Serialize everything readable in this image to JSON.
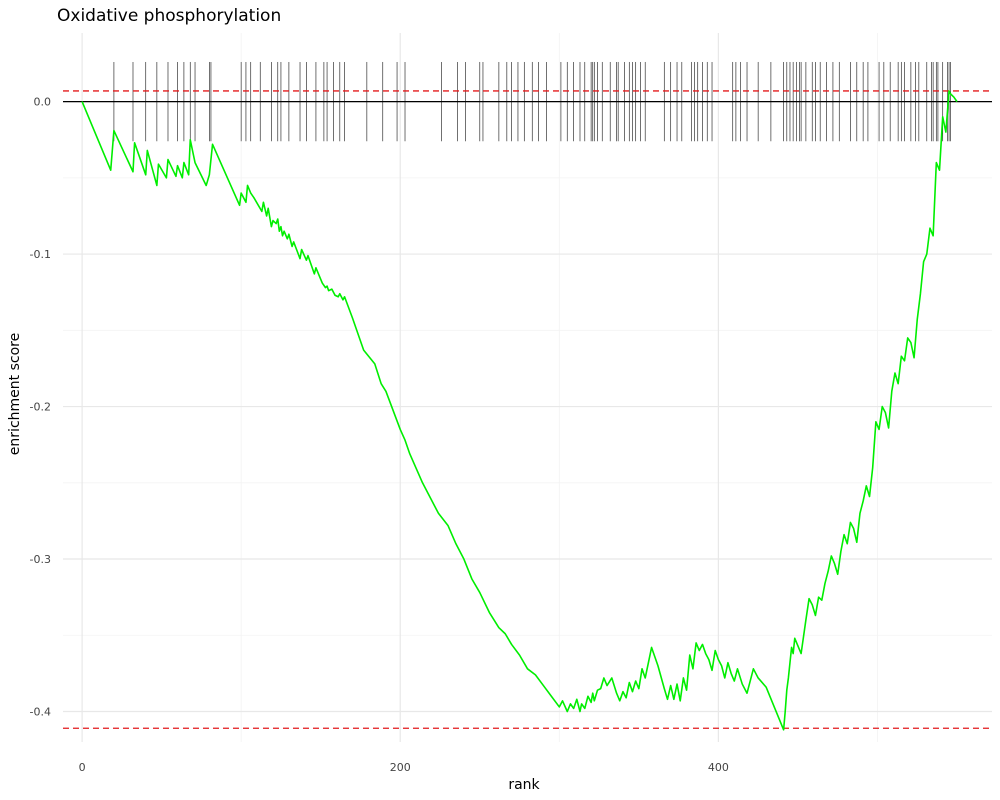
{
  "chart_data": {
    "type": "line",
    "title": "Oxidative phosphorylation",
    "xlabel": "rank",
    "ylabel": "enrichment score",
    "xlim": [
      -12,
      572
    ],
    "ylim": [
      -0.42,
      0.045
    ],
    "x_ticks": [
      0,
      200,
      400
    ],
    "x_tick_labels": [
      "0",
      "200",
      "400"
    ],
    "y_ticks": [
      0.0,
      -0.1,
      -0.2,
      -0.3,
      -0.4
    ],
    "y_tick_labels": [
      "0.0",
      "-0.1",
      "-0.2",
      "-0.3",
      "-0.4"
    ],
    "grid": true,
    "legend": "none",
    "zero_line": 0.0,
    "threshold_lines": [
      0.007,
      -0.411
    ],
    "hit_ticks": {
      "y_range": [
        -0.026,
        0.026
      ],
      "positions": [
        20,
        32,
        40,
        47,
        54,
        60,
        64,
        68,
        71,
        80,
        81,
        100,
        103,
        106,
        112,
        119,
        123,
        125,
        130,
        137,
        141,
        147,
        152,
        154,
        158,
        162,
        165,
        179,
        189,
        198,
        203,
        226,
        236,
        241,
        250,
        252,
        262,
        267,
        270,
        274,
        278,
        283,
        287,
        292,
        301,
        305,
        309,
        313,
        316,
        320,
        321,
        322,
        324,
        327,
        332,
        336,
        337,
        341,
        344,
        346,
        348,
        351,
        354,
        366,
        370,
        374,
        377,
        383,
        385,
        387,
        390,
        393,
        396,
        409,
        411,
        414,
        418,
        425,
        433,
        441,
        443,
        445,
        447,
        449,
        451,
        452,
        455,
        459,
        461,
        464,
        468,
        472,
        476,
        483,
        487,
        491,
        494,
        501,
        504,
        508,
        513,
        515,
        517,
        521,
        524,
        526,
        531,
        534,
        535,
        537,
        538,
        541,
        544,
        545,
        546
      ]
    },
    "series": [
      {
        "color": "#00ee00",
        "x": [
          0,
          18,
          20,
          32,
          33,
          40,
          41,
          47,
          48,
          53,
          54,
          59,
          60,
          63,
          64,
          67,
          68,
          70,
          71,
          78,
          80,
          81,
          82,
          99,
          100,
          103,
          104,
          106,
          108,
          113,
          114,
          116,
          117,
          119,
          120,
          122,
          123,
          124,
          125,
          126,
          127,
          129,
          130,
          132,
          133,
          137,
          138,
          141,
          142,
          146,
          147,
          151,
          153,
          154,
          155,
          157,
          159,
          161,
          162,
          164,
          165,
          170,
          177,
          184,
          188,
          191,
          200,
          203,
          206,
          214,
          224,
          230,
          235,
          240,
          245,
          250,
          256,
          262,
          266,
          270,
          275,
          280,
          285,
          290,
          295,
          300,
          302,
          305,
          307,
          309,
          311,
          313,
          314,
          316,
          318,
          320,
          321,
          322,
          324,
          326,
          328,
          330,
          333,
          336,
          338,
          340,
          342,
          344,
          346,
          348,
          350,
          352,
          354,
          358,
          362,
          366,
          368,
          370,
          372,
          374,
          376,
          378,
          380,
          382,
          384,
          386,
          388,
          390,
          392,
          394,
          396,
          398,
          400,
          402,
          404,
          406,
          408,
          410,
          412,
          415,
          418,
          422,
          425,
          430,
          441,
          442,
          443,
          444,
          445,
          446,
          447,
          448,
          450,
          452,
          455,
          457,
          459,
          461,
          463,
          465,
          467,
          469,
          471,
          473,
          475,
          477,
          479,
          481,
          483,
          485,
          487,
          489,
          491,
          493,
          495,
          497,
          499,
          501,
          503,
          505,
          507,
          509,
          511,
          513,
          515,
          517,
          519,
          521,
          523,
          525,
          527,
          529,
          531,
          533,
          535,
          537,
          539,
          541,
          543,
          545,
          546,
          548,
          550
        ],
        "y": [
          0.0,
          -0.045,
          -0.019,
          -0.046,
          -0.027,
          -0.048,
          -0.032,
          -0.055,
          -0.041,
          -0.05,
          -0.038,
          -0.049,
          -0.042,
          -0.05,
          -0.04,
          -0.048,
          -0.025,
          -0.035,
          -0.04,
          -0.055,
          -0.048,
          -0.038,
          -0.028,
          -0.068,
          -0.06,
          -0.066,
          -0.055,
          -0.06,
          -0.063,
          -0.072,
          -0.066,
          -0.075,
          -0.07,
          -0.082,
          -0.078,
          -0.08,
          -0.077,
          -0.085,
          -0.082,
          -0.088,
          -0.085,
          -0.09,
          -0.087,
          -0.095,
          -0.092,
          -0.103,
          -0.097,
          -0.104,
          -0.101,
          -0.113,
          -0.109,
          -0.119,
          -0.122,
          -0.121,
          -0.124,
          -0.123,
          -0.127,
          -0.128,
          -0.126,
          -0.13,
          -0.128,
          -0.142,
          -0.163,
          -0.172,
          -0.185,
          -0.19,
          -0.215,
          -0.222,
          -0.231,
          -0.25,
          -0.27,
          -0.278,
          -0.29,
          -0.3,
          -0.313,
          -0.322,
          -0.335,
          -0.345,
          -0.349,
          -0.356,
          -0.363,
          -0.372,
          -0.376,
          -0.383,
          -0.39,
          -0.397,
          -0.393,
          -0.4,
          -0.395,
          -0.398,
          -0.392,
          -0.4,
          -0.395,
          -0.398,
          -0.39,
          -0.394,
          -0.388,
          -0.393,
          -0.386,
          -0.385,
          -0.378,
          -0.383,
          -0.378,
          -0.388,
          -0.393,
          -0.387,
          -0.391,
          -0.381,
          -0.387,
          -0.38,
          -0.385,
          -0.372,
          -0.378,
          -0.358,
          -0.37,
          -0.385,
          -0.392,
          -0.383,
          -0.392,
          -0.382,
          -0.393,
          -0.378,
          -0.386,
          -0.363,
          -0.372,
          -0.355,
          -0.36,
          -0.356,
          -0.362,
          -0.366,
          -0.373,
          -0.36,
          -0.366,
          -0.37,
          -0.378,
          -0.368,
          -0.375,
          -0.38,
          -0.372,
          -0.382,
          -0.388,
          -0.372,
          -0.378,
          -0.384,
          -0.412,
          -0.4,
          -0.386,
          -0.378,
          -0.368,
          -0.358,
          -0.362,
          -0.352,
          -0.357,
          -0.362,
          -0.34,
          -0.326,
          -0.33,
          -0.337,
          -0.325,
          -0.327,
          -0.316,
          -0.308,
          -0.298,
          -0.303,
          -0.31,
          -0.295,
          -0.284,
          -0.29,
          -0.276,
          -0.28,
          -0.289,
          -0.27,
          -0.262,
          -0.252,
          -0.259,
          -0.24,
          -0.21,
          -0.215,
          -0.2,
          -0.204,
          -0.214,
          -0.19,
          -0.178,
          -0.185,
          -0.167,
          -0.17,
          -0.155,
          -0.158,
          -0.168,
          -0.143,
          -0.126,
          -0.105,
          -0.1,
          -0.083,
          -0.088,
          -0.04,
          -0.045,
          -0.01,
          -0.02,
          0.007,
          0.005,
          0.003,
          0.0
        ]
      }
    ]
  }
}
